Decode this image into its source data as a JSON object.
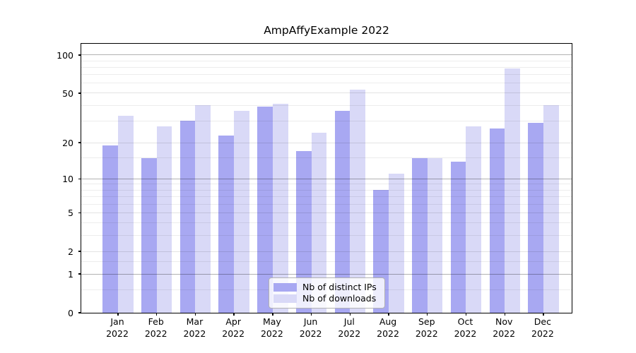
{
  "title": "AmpAffyExample 2022",
  "legend": {
    "items": [
      {
        "label": "Nb of distinct IPs",
        "color": "#a8a8f2"
      },
      {
        "label": "Nb of downloads",
        "color": "#d9d9f7"
      }
    ],
    "position": "lower center"
  },
  "chart_data": {
    "type": "bar",
    "title": "AmpAffyExample 2022",
    "categories": [
      "Jan\n2022",
      "Feb\n2022",
      "Mar\n2022",
      "Apr\n2022",
      "May\n2022",
      "Jun\n2022",
      "Jul\n2022",
      "Aug\n2022",
      "Sep\n2022",
      "Oct\n2022",
      "Nov\n2022",
      "Dec\n2022"
    ],
    "series": [
      {
        "name": "Nb of distinct IPs",
        "color": "#a8a8f2",
        "values": [
          19,
          15,
          30,
          23,
          39,
          17,
          36,
          8,
          15,
          14,
          26,
          29
        ]
      },
      {
        "name": "Nb of downloads",
        "color": "#d9d9f7",
        "values": [
          33,
          27,
          40,
          36,
          41,
          24,
          53,
          11,
          15,
          27,
          78,
          40
        ]
      }
    ],
    "xlabel": "",
    "ylabel": "",
    "yscale": "log1p",
    "ylim": [
      0,
      126
    ],
    "y_ticks": [
      100,
      50,
      20,
      10,
      5,
      2,
      1,
      0
    ],
    "y_minor_gridlines": [
      0.5,
      1.5,
      3,
      4,
      6,
      7,
      8,
      9,
      15,
      30,
      40,
      60,
      70,
      80,
      90
    ],
    "grid": "horizontal",
    "legend_position": "lower center",
    "colors": {
      "bar_dark": "#a8a8f2",
      "bar_light": "#d9d9f7",
      "axis": "#000000",
      "grid_minor": "#ededed",
      "grid_pow10": "#b3b3b3"
    }
  }
}
